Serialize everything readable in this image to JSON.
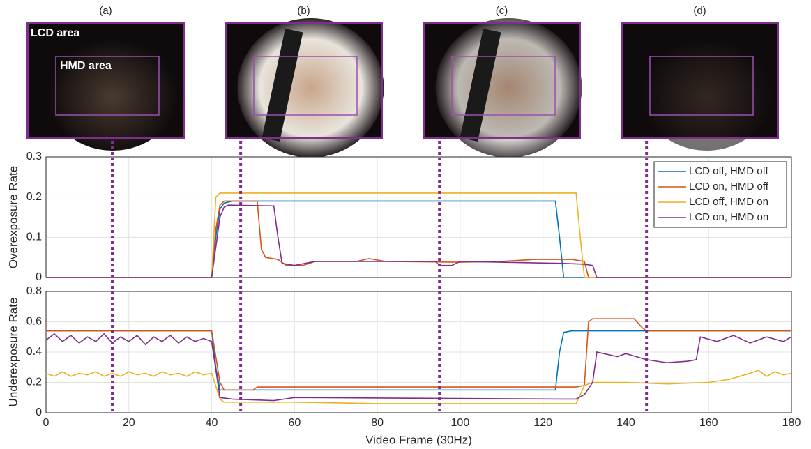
{
  "panels": [
    {
      "label": "(a)",
      "frame": 16
    },
    {
      "label": "(b)",
      "frame": 47
    },
    {
      "label": "(c)",
      "frame": 95
    },
    {
      "label": "(d)",
      "frame": 145
    }
  ],
  "panel_texts": {
    "lcd": "LCD area",
    "hmd": "HMD area"
  },
  "chart_data": [
    {
      "type": "line",
      "ylabel": "Overexposure Rate",
      "xlim": [
        0,
        180
      ],
      "xticks": [
        0,
        20,
        40,
        60,
        80,
        100,
        120,
        140,
        160,
        180
      ],
      "ylim": [
        0,
        0.3
      ],
      "yticks": [
        0,
        0.1,
        0.2,
        0.3
      ],
      "grid": true,
      "legend": "upper right",
      "series": [
        {
          "name": "LCD off, HMD off",
          "color": "#0072BD",
          "x": [
            0,
            40,
            41,
            42,
            43,
            45,
            123,
            124,
            125,
            180
          ],
          "values": [
            0,
            0,
            0.1,
            0.17,
            0.185,
            0.19,
            0.19,
            0.1,
            0,
            0
          ]
        },
        {
          "name": "LCD on, HMD off",
          "color": "#D95319",
          "x": [
            0,
            40,
            41,
            42,
            43,
            51,
            52,
            53,
            56,
            58,
            62,
            65,
            75,
            78,
            82,
            100,
            110,
            118,
            127,
            130,
            131,
            180
          ],
          "values": [
            0,
            0,
            0.12,
            0.18,
            0.19,
            0.19,
            0.07,
            0.05,
            0.045,
            0.03,
            0.03,
            0.04,
            0.04,
            0.047,
            0.04,
            0.038,
            0.04,
            0.045,
            0.045,
            0.04,
            0,
            0
          ]
        },
        {
          "name": "LCD off, HMD on",
          "color": "#EDB120",
          "x": [
            0,
            40,
            41,
            42,
            128,
            129,
            130,
            180
          ],
          "values": [
            0,
            0,
            0.2,
            0.21,
            0.21,
            0.1,
            0,
            0
          ]
        },
        {
          "name": "LCD on, HMD on",
          "color": "#7E2F8E",
          "x": [
            0,
            40,
            42,
            43,
            44,
            55,
            56,
            57,
            60,
            65,
            94,
            95,
            98,
            100,
            125,
            130,
            132,
            133,
            180
          ],
          "values": [
            0,
            0,
            0.15,
            0.175,
            0.18,
            0.178,
            0.1,
            0.035,
            0.03,
            0.04,
            0.04,
            0.03,
            0.03,
            0.04,
            0.035,
            0.033,
            0.03,
            0,
            0
          ]
        }
      ]
    },
    {
      "type": "line",
      "ylabel": "Underexposure Rate",
      "xlabel": "Video Frame (30Hz)",
      "xlim": [
        0,
        180
      ],
      "xticks": [
        0,
        20,
        40,
        60,
        80,
        100,
        120,
        140,
        160,
        180
      ],
      "ylim": [
        0,
        0.8
      ],
      "yticks": [
        0,
        0.2,
        0.4,
        0.6,
        0.8
      ],
      "grid": true,
      "series": [
        {
          "name": "LCD off, HMD off",
          "color": "#0072BD",
          "x": [
            0,
            40,
            41,
            42,
            123,
            124,
            125,
            127,
            180
          ],
          "values": [
            0.54,
            0.54,
            0.3,
            0.15,
            0.15,
            0.4,
            0.53,
            0.54,
            0.54
          ]
        },
        {
          "name": "LCD on, HMD off",
          "color": "#D95319",
          "x": [
            0,
            40,
            42,
            43,
            50,
            51,
            123,
            128,
            130,
            131,
            132,
            142,
            144,
            145,
            180
          ],
          "values": [
            0.54,
            0.54,
            0.2,
            0.15,
            0.15,
            0.17,
            0.17,
            0.17,
            0.18,
            0.6,
            0.62,
            0.62,
            0.56,
            0.54,
            0.54
          ]
        },
        {
          "name": "LCD off, HMD on",
          "color": "#EDB120",
          "x": [
            0,
            2,
            4,
            6,
            8,
            10,
            12,
            14,
            16,
            18,
            20,
            22,
            24,
            26,
            28,
            30,
            32,
            34,
            36,
            38,
            40,
            42,
            43,
            60,
            80,
            100,
            128,
            130,
            132,
            140,
            150,
            160,
            165,
            170,
            172,
            174,
            176,
            178,
            180
          ],
          "values": [
            0.26,
            0.24,
            0.27,
            0.24,
            0.26,
            0.25,
            0.27,
            0.24,
            0.26,
            0.24,
            0.27,
            0.25,
            0.26,
            0.24,
            0.27,
            0.25,
            0.26,
            0.24,
            0.27,
            0.25,
            0.26,
            0.09,
            0.07,
            0.07,
            0.06,
            0.06,
            0.06,
            0.18,
            0.2,
            0.2,
            0.19,
            0.2,
            0.22,
            0.26,
            0.28,
            0.24,
            0.27,
            0.25,
            0.26
          ]
        },
        {
          "name": "LCD on, HMD on",
          "color": "#7E2F8E",
          "x": [
            0,
            2,
            4,
            6,
            8,
            10,
            12,
            14,
            16,
            18,
            20,
            22,
            24,
            26,
            28,
            30,
            32,
            34,
            36,
            38,
            40,
            42,
            45,
            55,
            60,
            125,
            128,
            130,
            132,
            133,
            138,
            140,
            145,
            150,
            155,
            157,
            158,
            162,
            166,
            170,
            174,
            178,
            180
          ],
          "values": [
            0.48,
            0.52,
            0.47,
            0.51,
            0.46,
            0.5,
            0.47,
            0.52,
            0.46,
            0.5,
            0.47,
            0.51,
            0.45,
            0.5,
            0.47,
            0.51,
            0.46,
            0.5,
            0.47,
            0.49,
            0.47,
            0.1,
            0.09,
            0.08,
            0.1,
            0.09,
            0.09,
            0.12,
            0.2,
            0.4,
            0.37,
            0.39,
            0.35,
            0.33,
            0.34,
            0.35,
            0.5,
            0.47,
            0.51,
            0.46,
            0.5,
            0.47,
            0.5
          ]
        }
      ]
    }
  ]
}
